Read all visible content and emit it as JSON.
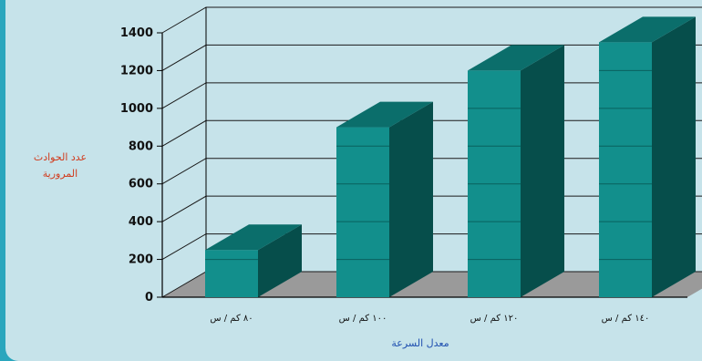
{
  "chart_data": {
    "type": "bar",
    "ylabel": "عدد الحوادث المرورية",
    "xlabel": "معدل السرعة",
    "categories": [
      "٨٠ كم / س",
      "١٠٠ كم / س",
      "١٢٠ كم / س",
      "١٤٠ كم / س"
    ],
    "values": [
      250,
      900,
      1200,
      1350
    ],
    "ylim": [
      0,
      1400
    ],
    "yticks": [
      0,
      200,
      400,
      600,
      800,
      1000,
      1200,
      1400
    ],
    "grid": true,
    "colors": {
      "bar_front": "#128f8c",
      "bar_top": "#0b6e6b",
      "bar_side": "#064e4b",
      "floor": "#9a9a9a",
      "wall": "#c6e3ea",
      "gridline": "#1a1a1a"
    }
  }
}
